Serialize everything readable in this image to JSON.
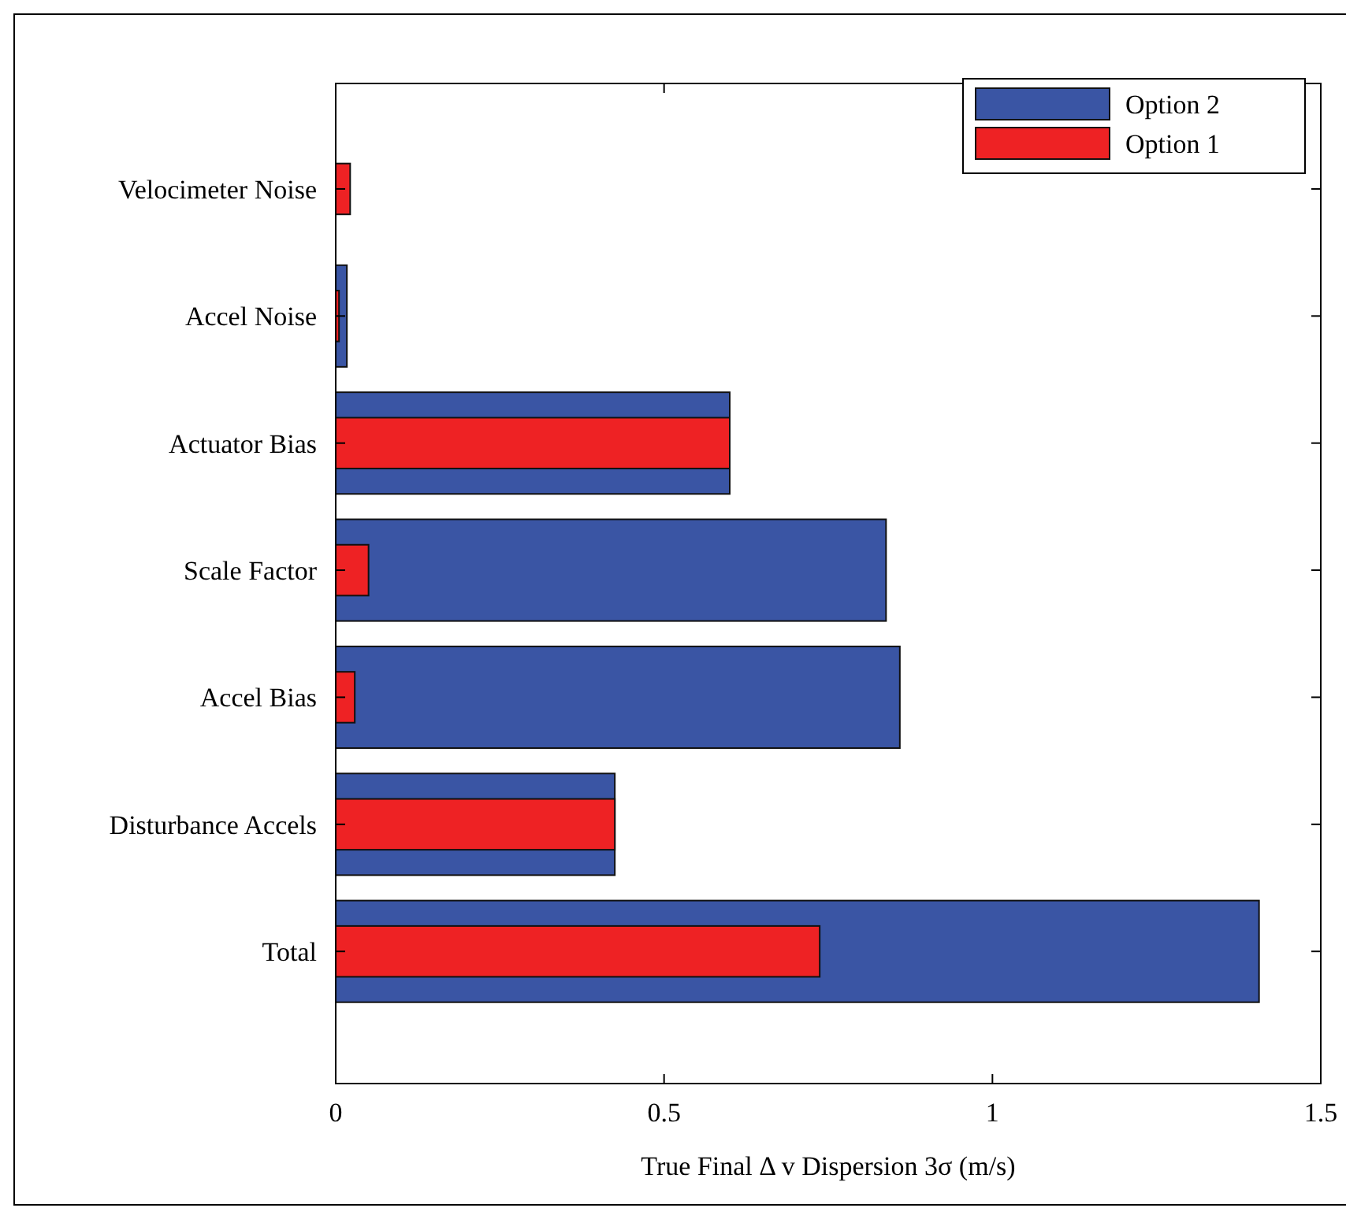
{
  "chart_data": {
    "type": "bar",
    "orientation": "horizontal",
    "xlabel": "True Final Δ v Dispersion 3σ (m/s)",
    "categories": [
      "Velocimeter Noise",
      "Accel Noise",
      "Actuator Bias",
      "Scale Factor",
      "Accel Bias",
      "Disturbance Accels",
      "Total"
    ],
    "series": [
      {
        "name": "Option 2",
        "color": "#3a55a4",
        "values": [
          0,
          0.017,
          0.6,
          0.838,
          0.859,
          0.425,
          1.406
        ]
      },
      {
        "name": "Option 1",
        "color": "#ee2224",
        "values": [
          0.022,
          0.005,
          0.6,
          0.05,
          0.029,
          0.425,
          0.737
        ]
      }
    ],
    "xlim": [
      0,
      1.5
    ],
    "xticks": [
      0,
      0.5,
      1,
      1.5
    ],
    "legend": "top right",
    "grid": false
  }
}
